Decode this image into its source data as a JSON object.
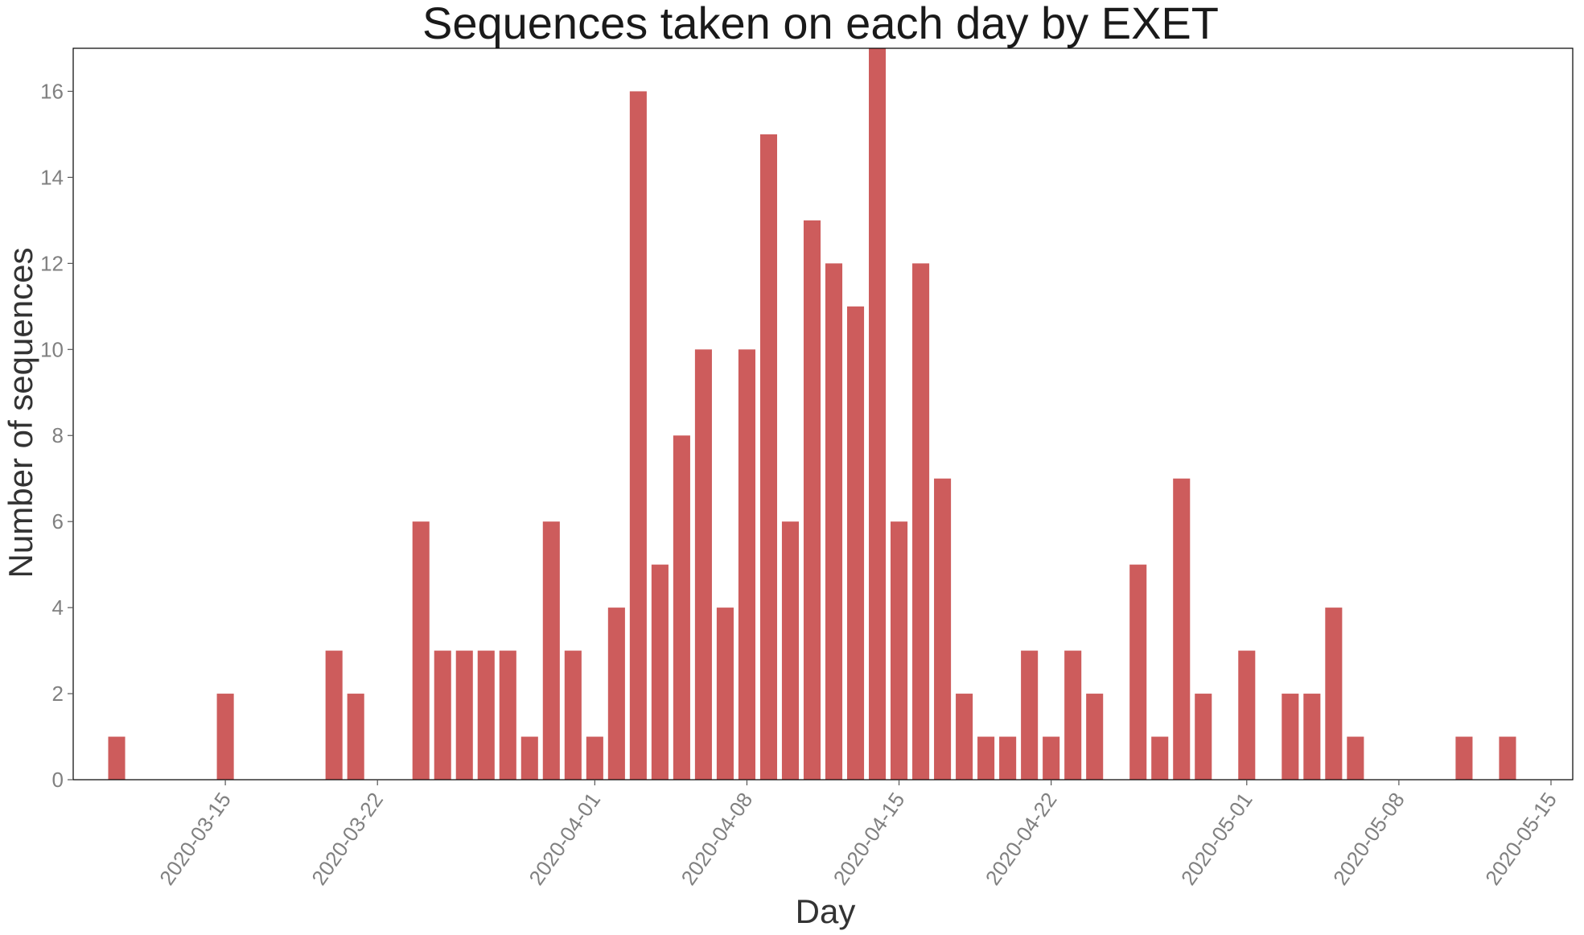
{
  "chart_data": {
    "type": "bar",
    "title": "Sequences taken on each day by EXET",
    "xlabel": "Day",
    "ylabel": "Number of sequences",
    "ylim": [
      0,
      17
    ],
    "y_ticks": [
      0,
      2,
      4,
      6,
      8,
      10,
      12,
      14,
      16
    ],
    "xlim": [
      "2020-03-08",
      "2020-05-16"
    ],
    "x_ticks": [
      "2020-03-15",
      "2020-03-22",
      "2020-04-01",
      "2020-04-08",
      "2020-04-15",
      "2020-04-22",
      "2020-05-01",
      "2020-05-08",
      "2020-05-15"
    ],
    "bar_color": "#cd5c5c",
    "grid": false,
    "x": [
      "2020-03-10",
      "2020-03-15",
      "2020-03-20",
      "2020-03-21",
      "2020-03-24",
      "2020-03-25",
      "2020-03-26",
      "2020-03-27",
      "2020-03-28",
      "2020-03-29",
      "2020-03-30",
      "2020-03-31",
      "2020-04-01",
      "2020-04-02",
      "2020-04-03",
      "2020-04-04",
      "2020-04-05",
      "2020-04-06",
      "2020-04-07",
      "2020-04-08",
      "2020-04-09",
      "2020-04-10",
      "2020-04-11",
      "2020-04-12",
      "2020-04-13",
      "2020-04-14",
      "2020-04-15",
      "2020-04-16",
      "2020-04-17",
      "2020-04-18",
      "2020-04-19",
      "2020-04-20",
      "2020-04-21",
      "2020-04-22",
      "2020-04-23",
      "2020-04-24",
      "2020-04-26",
      "2020-04-27",
      "2020-04-28",
      "2020-04-29",
      "2020-05-01",
      "2020-05-03",
      "2020-05-04",
      "2020-05-05",
      "2020-05-06",
      "2020-05-11",
      "2020-05-13"
    ],
    "values": [
      1,
      2,
      3,
      2,
      6,
      3,
      3,
      3,
      3,
      1,
      6,
      3,
      1,
      4,
      16,
      5,
      8,
      10,
      4,
      10,
      15,
      6,
      13,
      12,
      11,
      17,
      6,
      12,
      7,
      2,
      1,
      1,
      3,
      1,
      3,
      2,
      5,
      1,
      7,
      2,
      3,
      2,
      2,
      4,
      1,
      1,
      1
    ]
  }
}
